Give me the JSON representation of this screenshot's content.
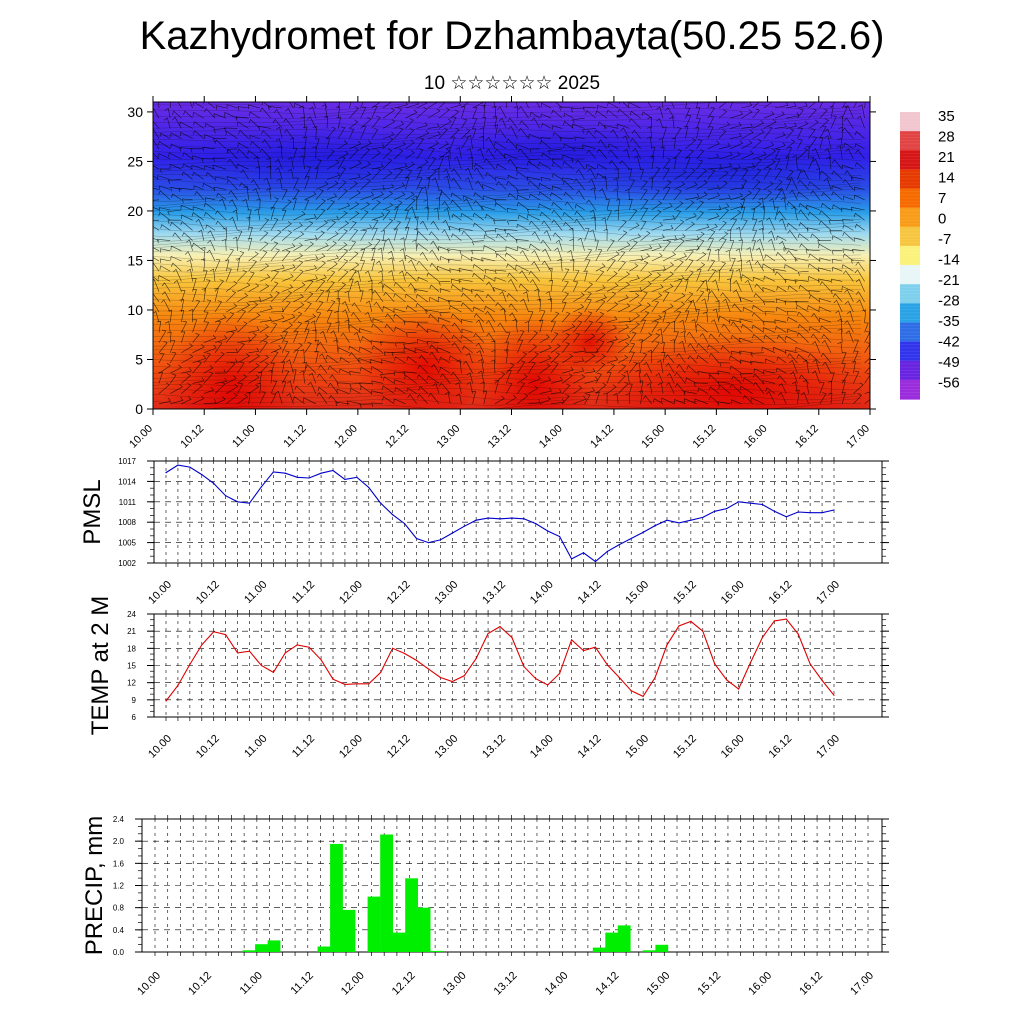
{
  "title": "Kazhydromet for Dzhambayta(50.25 52.6)",
  "subtitle": "10 ☆☆☆☆☆☆ 2025",
  "colorbar": {
    "labels": [
      "35",
      "28",
      "21",
      "14",
      "7",
      "0",
      "-7",
      "-14",
      "-21",
      "-28",
      "-35",
      "-42",
      "-49",
      "-56"
    ],
    "colors": [
      "#f2c6cf",
      "#e24444",
      "#d61616",
      "#e63a00",
      "#f66a00",
      "#f89c1a",
      "#f7c640",
      "#fbf27c",
      "#e8f6f8",
      "#7fd0ec",
      "#2aa3e6",
      "#2f6de6",
      "#3234ec",
      "#6824e0",
      "#9a2cdc"
    ]
  },
  "chart_data": [
    {
      "type": "heatmap",
      "title": "",
      "xlabel": "",
      "ylabel": "",
      "y_ticks": [
        "0",
        "5",
        "10",
        "15",
        "20",
        "25",
        "30"
      ],
      "ylim": [
        0,
        31
      ],
      "x_ticks": [
        "10.00",
        "10.12",
        "11.00",
        "11.12",
        "12.00",
        "12.12",
        "13.00",
        "13.12",
        "14.00",
        "14.12",
        "15.00",
        "15.12",
        "16.00",
        "16.12",
        "17.00"
      ],
      "color_range": [
        -56,
        35
      ],
      "description_layers": "temperature field with wind barbs"
    },
    {
      "type": "line",
      "ylabel": "PMSL",
      "ylim": [
        1002,
        1017
      ],
      "y_ticks": [
        "1017",
        "1014",
        "1011",
        "1008",
        "1005",
        "1002"
      ],
      "x_ticks": [
        "10.00",
        "10.12",
        "11.00",
        "11.12",
        "12.00",
        "12.12",
        "13.00",
        "13.12",
        "14.00",
        "14.12",
        "15.00",
        "15.12",
        "16.00",
        "16.12",
        "17.00"
      ],
      "color": "#0000cc",
      "values": [
        1015.3,
        1016.4,
        1016.1,
        1015.0,
        1013.7,
        1011.9,
        1011.0,
        1010.8,
        1013.2,
        1015.4,
        1015.2,
        1014.6,
        1014.5,
        1015.2,
        1015.6,
        1014.3,
        1014.6,
        1013.1,
        1010.8,
        1009.1,
        1007.8,
        1005.6,
        1005.0,
        1005.4,
        1006.4,
        1007.4,
        1008.3,
        1008.6,
        1008.5,
        1008.6,
        1008.5,
        1007.8,
        1006.7,
        1005.9,
        1002.6,
        1003.5,
        1002.2,
        1003.7,
        1004.7,
        1005.6,
        1006.5,
        1007.5,
        1008.3,
        1007.9,
        1008.3,
        1008.7,
        1009.6,
        1010.0,
        1011.0,
        1010.8,
        1010.6,
        1009.6,
        1008.8,
        1009.5,
        1009.4,
        1009.4,
        1009.8
      ]
    },
    {
      "type": "line",
      "ylabel": "TEMP at 2 M",
      "ylim": [
        6,
        24
      ],
      "y_ticks": [
        "24",
        "21",
        "18",
        "15",
        "12",
        "9",
        "6"
      ],
      "x_ticks": [
        "10.00",
        "10.12",
        "11.00",
        "11.12",
        "12.00",
        "12.12",
        "13.00",
        "13.12",
        "14.00",
        "14.12",
        "15.00",
        "15.12",
        "16.00",
        "16.12",
        "17.00"
      ],
      "color": "#dd0000",
      "values": [
        8.8,
        11.5,
        15.2,
        18.6,
        20.9,
        20.4,
        17.2,
        17.5,
        15.0,
        13.8,
        17.2,
        18.6,
        18.2,
        16.0,
        12.6,
        11.7,
        11.8,
        11.8,
        13.8,
        18.0,
        17.1,
        15.9,
        14.4,
        12.9,
        12.2,
        13.2,
        16.2,
        20.6,
        21.8,
        19.9,
        14.8,
        12.7,
        11.6,
        13.6,
        19.5,
        17.6,
        18.2,
        15.1,
        12.9,
        10.6,
        9.6,
        12.9,
        18.6,
        21.9,
        22.7,
        21.0,
        15.3,
        12.5,
        10.9,
        15.5,
        19.9,
        22.8,
        23.1,
        20.5,
        15.3,
        12.4,
        9.8
      ]
    },
    {
      "type": "bar",
      "ylabel": "PRECIP, mm",
      "ylim": [
        0,
        2.4
      ],
      "y_ticks": [
        "2.4",
        "2.0",
        "1.6",
        "1.2",
        "0.8",
        "0.4",
        "0.0"
      ],
      "x_ticks": [
        "10.00",
        "10.12",
        "11.00",
        "11.12",
        "12.00",
        "12.12",
        "13.00",
        "13.12",
        "14.00",
        "14.12",
        "15.00",
        "15.12",
        "16.00",
        "16.12",
        "17.00"
      ],
      "color": "#00ee00",
      "values": [
        0,
        0,
        0,
        0,
        0,
        0,
        0,
        0.03,
        0.14,
        0.21,
        0,
        0,
        0,
        0.1,
        1.95,
        0.76,
        0,
        1.0,
        2.12,
        0.35,
        1.33,
        0.8,
        0.02,
        0,
        0,
        0,
        0,
        0,
        0,
        0,
        0,
        0,
        0,
        0,
        0,
        0.08,
        0.35,
        0.48,
        0,
        0.03,
        0.13,
        0,
        0,
        0,
        0,
        0,
        0,
        0,
        0,
        0,
        0,
        0,
        0,
        0,
        0,
        0,
        0,
        0
      ]
    }
  ]
}
